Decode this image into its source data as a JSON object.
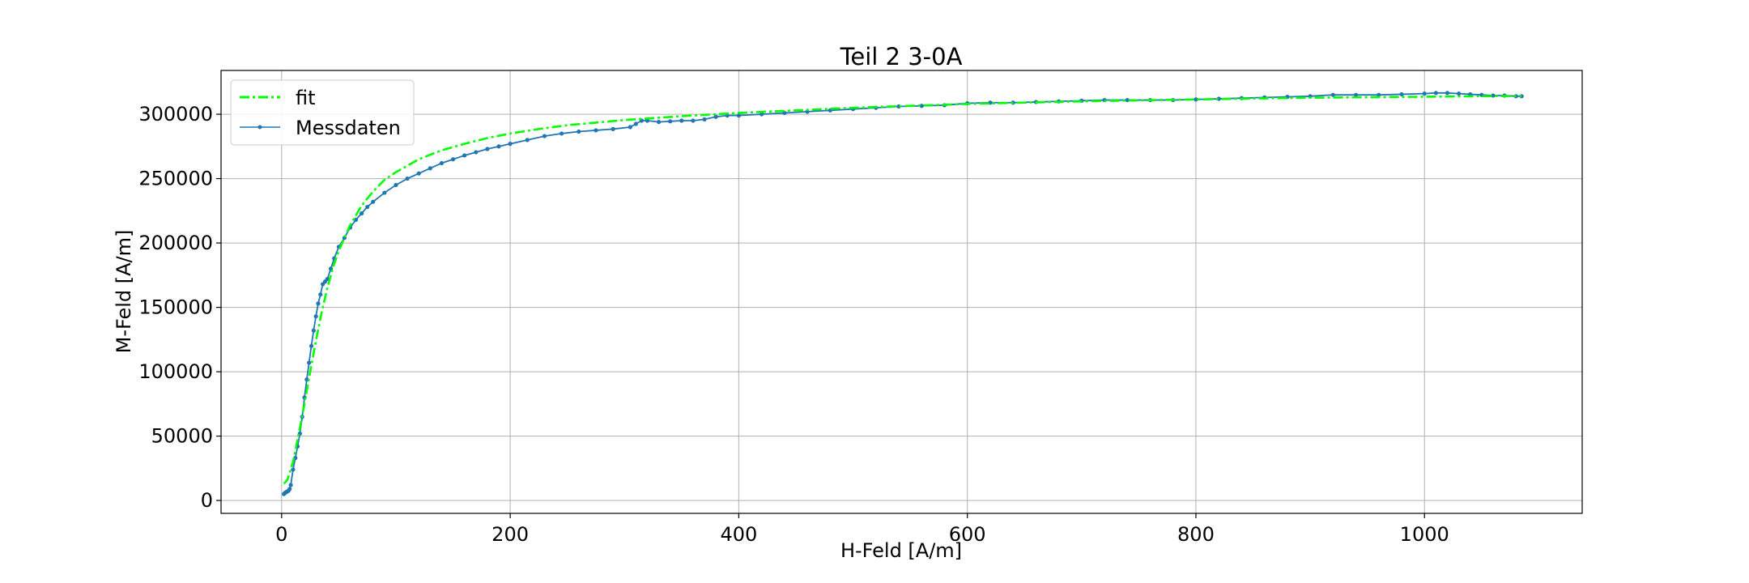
{
  "chart_data": {
    "type": "line",
    "title": "Teil 2 3-0A",
    "xlabel": "H-Feld [A/m]",
    "ylabel": "M-Feld [A/m]",
    "xlim": [
      -53,
      1138
    ],
    "ylim": [
      -10000,
      334000
    ],
    "xticks": [
      0,
      200,
      400,
      600,
      800,
      1000
    ],
    "yticks": [
      0,
      50000,
      100000,
      150000,
      200000,
      250000,
      300000
    ],
    "grid": true,
    "legend_position": "upper-left",
    "legend_entries": [
      "fit",
      "Messdaten"
    ],
    "colors": {
      "fit": "#00ff00",
      "Messdaten": "#1f77b4"
    },
    "series": [
      {
        "name": "fit",
        "style": "dash-dot",
        "x": [
          2,
          5,
          10,
          15,
          20,
          25,
          30,
          35,
          40,
          45,
          50,
          60,
          70,
          80,
          90,
          100,
          120,
          140,
          160,
          180,
          200,
          225,
          250,
          275,
          300,
          350,
          400,
          450,
          500,
          550,
          600,
          650,
          700,
          750,
          800,
          850,
          900,
          950,
          1000,
          1050,
          1085
        ],
        "y": [
          13000,
          16000,
          30000,
          52000,
          75000,
          100000,
          124000,
          146000,
          165000,
          181000,
          194000,
          214000,
          229000,
          240000,
          249000,
          255000,
          265000,
          272000,
          277000,
          281500,
          285000,
          288500,
          291500,
          293500,
          295500,
          298500,
          301000,
          303000,
          305000,
          306500,
          308000,
          309000,
          310000,
          310800,
          311500,
          312200,
          312800,
          313200,
          313600,
          314000,
          314200
        ]
      },
      {
        "name": "Messdaten",
        "style": "line-with-markers",
        "x": [
          2,
          3,
          4,
          5,
          6,
          7,
          8,
          10,
          12,
          14,
          16,
          18,
          20,
          22,
          24,
          26,
          28,
          30,
          32,
          34,
          36,
          38,
          40,
          43,
          46,
          50,
          55,
          60,
          65,
          70,
          75,
          80,
          90,
          100,
          110,
          120,
          130,
          140,
          150,
          160,
          170,
          180,
          190,
          200,
          215,
          230,
          245,
          260,
          275,
          290,
          305,
          310,
          315,
          320,
          330,
          340,
          350,
          360,
          370,
          380,
          390,
          400,
          420,
          440,
          460,
          480,
          500,
          520,
          540,
          560,
          580,
          600,
          620,
          640,
          660,
          680,
          700,
          720,
          740,
          760,
          780,
          800,
          820,
          840,
          860,
          880,
          900,
          920,
          940,
          960,
          980,
          1000,
          1010,
          1020,
          1030,
          1040,
          1050,
          1060,
          1070,
          1080,
          1085
        ],
        "y": [
          5000,
          6000,
          6500,
          7000,
          7500,
          9000,
          12000,
          24000,
          33000,
          42000,
          52000,
          65000,
          80000,
          94000,
          107000,
          120000,
          132000,
          143000,
          153000,
          160000,
          168000,
          170000,
          172000,
          180000,
          188000,
          197000,
          204000,
          212000,
          218000,
          223000,
          228000,
          232000,
          239000,
          245000,
          250000,
          254000,
          258000,
          262000,
          265000,
          268000,
          270500,
          273000,
          275000,
          277000,
          280000,
          283000,
          285000,
          286500,
          287500,
          288500,
          290000,
          292500,
          295000,
          295000,
          294000,
          294500,
          295000,
          295000,
          296000,
          298000,
          299000,
          299000,
          300000,
          301000,
          302000,
          303000,
          304000,
          305000,
          306000,
          306500,
          307000,
          308500,
          309000,
          309000,
          309500,
          310000,
          310500,
          311000,
          311000,
          311000,
          311000,
          311500,
          312000,
          312500,
          313000,
          313500,
          314000,
          315000,
          315000,
          315000,
          315500,
          316000,
          316500,
          316500,
          316000,
          315500,
          315000,
          314500,
          314500,
          314000,
          314000
        ]
      }
    ]
  }
}
